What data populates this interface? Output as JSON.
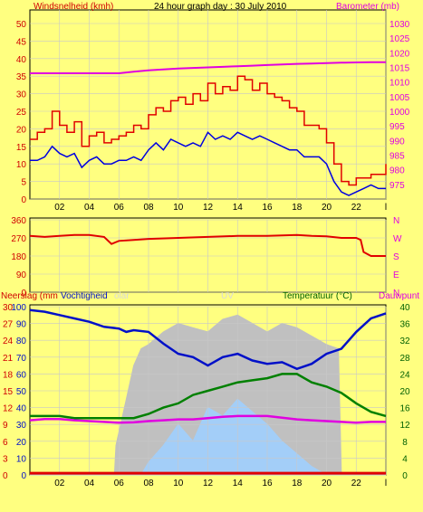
{
  "colors": {
    "background": "#ffff80",
    "plot_background": "#ffff80",
    "grid": "#c8c8c8",
    "wind": "#0000e0",
    "gust": "#e00000",
    "barometer": "#e000e0",
    "direction": "#e00000",
    "humidity": "#0010c8",
    "temperature": "#008000",
    "dewpoint": "#e000e0",
    "solar": "#c0c0c0",
    "uv": "#a0d0ff",
    "rain": "#e00000",
    "axis_text": "#000000",
    "left_label": "#d00000",
    "right_label_top": "#e000e0",
    "temp_label": "#006000",
    "solar_label": "#d8d8d8"
  },
  "chart_data": [
    {
      "type": "line",
      "title": "24 hour graph day : 30 July 2010",
      "ylabel": "Windsnelheid (kmh)",
      "y2label": "Barometer (mb)",
      "ylim": [
        0,
        50
      ],
      "y2lim": [
        970,
        1030
      ],
      "yticks": [
        "0",
        "5",
        "10",
        "15",
        "20",
        "25",
        "30",
        "35",
        "40",
        "45",
        "50"
      ],
      "y2ticks": [
        "975",
        "980",
        "985",
        "990",
        "995",
        "1000",
        "1005",
        "1010",
        "1015",
        "1020",
        "1025",
        "1030"
      ],
      "xlim": [
        0,
        24
      ],
      "xticks": [
        "02",
        "04",
        "06",
        "08",
        "10",
        "12",
        "14",
        "16",
        "18",
        "20",
        "22",
        "l"
      ],
      "series": [
        {
          "name": "Windsnelheid",
          "axis": "left",
          "x": [
            0,
            0.5,
            1,
            1.5,
            2,
            2.5,
            3,
            3.5,
            4,
            4.5,
            5,
            5.5,
            6,
            6.5,
            7,
            7.5,
            8,
            8.5,
            9,
            9.5,
            10,
            10.5,
            11,
            11.5,
            12,
            12.5,
            13,
            13.5,
            14,
            14.5,
            15,
            15.5,
            16,
            16.5,
            17,
            17.5,
            18,
            18.5,
            19,
            19.5,
            20,
            20.5,
            21,
            21.5,
            22,
            22.5,
            23,
            23.5,
            24
          ],
          "values": [
            11,
            11,
            12,
            15,
            13,
            12,
            13,
            9,
            11,
            12,
            10,
            10,
            11,
            11,
            12,
            11,
            14,
            16,
            14,
            17,
            16,
            15,
            16,
            15,
            19,
            17,
            18,
            17,
            19,
            18,
            17,
            18,
            17,
            16,
            15,
            14,
            14,
            12,
            12,
            12,
            10,
            5,
            2,
            1,
            2,
            3,
            4,
            3,
            3
          ]
        },
        {
          "name": "Windstoot",
          "axis": "left",
          "x": [
            0,
            0.5,
            1,
            1.5,
            2,
            2.5,
            3,
            3.5,
            4,
            4.5,
            5,
            5.5,
            6,
            6.5,
            7,
            7.5,
            8,
            8.5,
            9,
            9.5,
            10,
            10.5,
            11,
            11.5,
            12,
            12.5,
            13,
            13.5,
            14,
            14.5,
            15,
            15.5,
            16,
            16.5,
            17,
            17.5,
            18,
            18.5,
            19,
            19.5,
            20,
            20.5,
            21,
            21.5,
            22,
            22.5,
            23,
            23.5,
            24
          ],
          "values": [
            17,
            19,
            20,
            25,
            21,
            19,
            22,
            15,
            18,
            19,
            16,
            17,
            18,
            19,
            21,
            20,
            24,
            26,
            25,
            28,
            29,
            27,
            30,
            28,
            33,
            30,
            32,
            31,
            35,
            34,
            31,
            33,
            30,
            29,
            28,
            26,
            25,
            21,
            21,
            20,
            16,
            10,
            5,
            4,
            6,
            6,
            7,
            7,
            10
          ]
        },
        {
          "name": "Barometer",
          "axis": "right",
          "x": [
            0,
            1,
            2,
            3,
            4,
            5,
            6,
            7,
            8,
            9,
            10,
            11,
            12,
            13,
            14,
            15,
            16,
            17,
            18,
            19,
            20,
            21,
            22,
            23,
            24
          ],
          "values": [
            1013,
            1013,
            1013,
            1013,
            1013,
            1013,
            1013,
            1013.5,
            1014,
            1014.3,
            1014.6,
            1014.8,
            1015,
            1015.2,
            1015.4,
            1015.6,
            1015.8,
            1016,
            1016.2,
            1016.3,
            1016.5,
            1016.6,
            1016.7,
            1016.8,
            1016.8
          ]
        }
      ]
    },
    {
      "type": "line",
      "ylim": [
        0,
        360
      ],
      "yticks": [
        "0",
        "90",
        "180",
        "270",
        "360"
      ],
      "y2ticks": [
        "N",
        "E",
        "S",
        "W",
        "N"
      ],
      "xlim": [
        0,
        24
      ],
      "series": [
        {
          "name": "Windrichting",
          "x": [
            0,
            1,
            2,
            3,
            4,
            5,
            5.5,
            6,
            7,
            8,
            10,
            12,
            14,
            16,
            18,
            19,
            20,
            21,
            22,
            22.3,
            22.5,
            23,
            24
          ],
          "values": [
            280,
            275,
            280,
            285,
            285,
            275,
            240,
            255,
            260,
            265,
            270,
            275,
            280,
            280,
            285,
            280,
            278,
            270,
            270,
            260,
            200,
            180,
            180
          ]
        }
      ]
    },
    {
      "type": "area",
      "ylabel": "Neerslag (mm",
      "ylabel2": "Vochtigheid",
      "ylabel3": "olar",
      "uv_label": "UV",
      "y2label": "Temperatuur (°C)",
      "y3label": "Dauwpunt",
      "ylim": [
        0,
        30
      ],
      "yticks_rain": [
        "0",
        "3",
        "6",
        "9",
        "12",
        "15",
        "18",
        "21",
        "24",
        "27",
        "30"
      ],
      "yticks_hum": [
        "0",
        "10",
        "20",
        "30",
        "40",
        "50",
        "60",
        "70",
        "80",
        "90",
        "100"
      ],
      "y2ticks": [
        "0",
        "4",
        "8",
        "12",
        "16",
        "20",
        "24",
        "28",
        "32",
        "36",
        "40"
      ],
      "y2lim": [
        0,
        40
      ],
      "xlim": [
        0,
        24
      ],
      "xticks": [
        "02",
        "04",
        "06",
        "08",
        "10",
        "12",
        "14",
        "16",
        "18",
        "20",
        "22",
        "l"
      ],
      "series": [
        {
          "name": "Vochtigheid",
          "axis": "hum",
          "x": [
            0,
            1,
            2,
            3,
            4,
            5,
            6,
            6.5,
            7,
            8,
            9,
            10,
            11,
            12,
            13,
            14,
            15,
            16,
            17,
            18,
            19,
            20,
            21,
            22,
            23,
            24
          ],
          "values": [
            98,
            97,
            95,
            93,
            91,
            88,
            87,
            85,
            86,
            85,
            78,
            72,
            70,
            65,
            70,
            72,
            68,
            66,
            67,
            63,
            66,
            72,
            75,
            85,
            93,
            96
          ]
        },
        {
          "name": "Temperatuur",
          "axis": "temp",
          "x": [
            0,
            1,
            2,
            3,
            4,
            5,
            6,
            7,
            8,
            9,
            10,
            11,
            12,
            13,
            14,
            15,
            16,
            17,
            18,
            19,
            20,
            21,
            22,
            23,
            24
          ],
          "values": [
            14,
            14,
            14,
            13.5,
            13.5,
            13.5,
            13.5,
            13.5,
            14.5,
            16,
            17,
            19,
            20,
            21,
            22,
            22.5,
            23,
            24,
            24,
            22,
            21,
            19.5,
            17,
            15,
            14
          ]
        },
        {
          "name": "Dauwpunt",
          "axis": "temp",
          "x": [
            0,
            1,
            2,
            3,
            4,
            5,
            6,
            7,
            8,
            9,
            10,
            11,
            12,
            13,
            14,
            15,
            16,
            17,
            18,
            19,
            20,
            21,
            22,
            23,
            24
          ],
          "values": [
            13,
            13.3,
            13.3,
            13,
            12.8,
            12.6,
            12.4,
            12.5,
            12.8,
            13,
            13.2,
            13.2,
            13.5,
            13.8,
            14,
            14,
            14,
            13.6,
            13.2,
            13,
            12.8,
            12.6,
            12.4,
            12.6,
            12.6
          ]
        },
        {
          "name": "Solar",
          "axis": "temp",
          "x": [
            0,
            5.7,
            5.8,
            6.5,
            7,
            7.5,
            8,
            9,
            10,
            11,
            12,
            13,
            14,
            15,
            16,
            17,
            18,
            19,
            20,
            20.8,
            21,
            24
          ],
          "values": [
            0,
            0,
            7,
            18,
            26,
            30,
            31,
            34,
            36,
            35,
            34,
            37,
            38,
            36,
            34,
            36,
            35,
            33,
            31,
            30,
            0,
            0
          ]
        },
        {
          "name": "UV",
          "axis": "temp",
          "x": [
            0,
            7.5,
            8,
            9,
            10,
            11,
            12,
            13,
            14,
            15,
            16,
            17,
            18,
            19,
            20,
            24
          ],
          "values": [
            0,
            0,
            3,
            7,
            12,
            8,
            16,
            14,
            18,
            15,
            12,
            8,
            5,
            2,
            0,
            0
          ]
        },
        {
          "name": "Neerslag",
          "axis": "rain",
          "x": [
            0,
            24
          ],
          "values": [
            0.3,
            0.3
          ]
        }
      ]
    }
  ]
}
